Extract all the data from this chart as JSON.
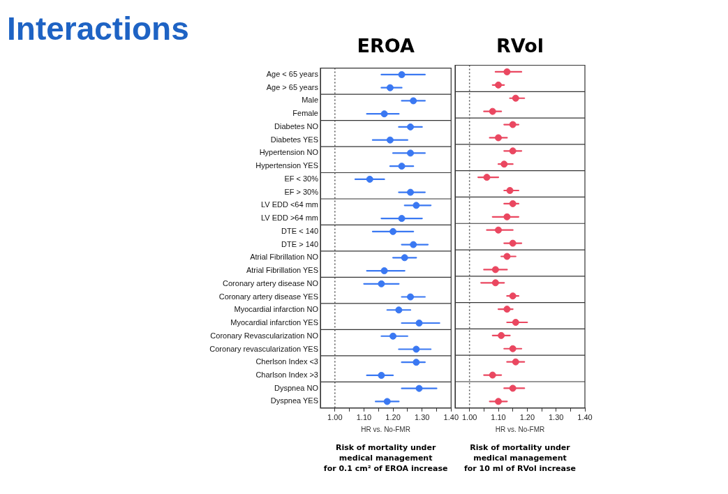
{
  "chart_data": [
    {
      "type": "scatter",
      "title": "EROA",
      "xlabel": "HR vs. No-FMR",
      "orientation": "horizontal",
      "marker": "circle",
      "legend": false,
      "grid": false,
      "annotations": [
        "Interactions",
        "Risk of mortality under\nmedical management\nfor 0.1 cm² of EROA increase"
      ],
      "categories": [
        "Age < 65 years",
        "Age > 65 years",
        "Male",
        "Female",
        "Diabetes NO",
        "Diabetes YES",
        "Hypertension NO",
        "Hypertension YES",
        "EF < 30%",
        "EF > 30%",
        "LV EDD <64 mm",
        "LV EDD >64 mm",
        "DTE < 140",
        "DTE > 140",
        "Atrial Fibrillation NO",
        "Atrial Fibrillation YES",
        "Coronary artery disease NO",
        "Coronary artery disease YES",
        "Myocardial infarction NO",
        "Myocardial infarction YES",
        "Coronary Revascularization NO",
        "Coronary revascularization YES",
        "Cherlson Index <3",
        "Charlson Index >3",
        "Dyspnea NO",
        "Dyspnea YES"
      ],
      "xlim": [
        0.95,
        1.4
      ],
      "xticks": [
        {
          "value": 1,
          "label": "1.00"
        },
        {
          "value": 1.05,
          "label": null
        },
        {
          "value": 1.1,
          "label": "1.10"
        },
        {
          "value": 1.15,
          "label": null
        },
        {
          "value": 1.2,
          "label": "1.20"
        },
        {
          "value": 1.25,
          "label": null
        },
        {
          "value": 1.3,
          "label": "1.30"
        },
        {
          "value": 1.35,
          "label": null
        },
        {
          "value": 1.4,
          "label": "1.40"
        }
      ],
      "ref_lines": [
        {
          "axis": "x",
          "value": 1,
          "line_style": "dotted",
          "color": "#555555"
        }
      ],
      "series": [
        {
          "color": "#3a78f2",
          "values": [
            1.23,
            1.19,
            1.27,
            1.17,
            1.26,
            1.19,
            1.26,
            1.23,
            1.12,
            1.26,
            1.28,
            1.23,
            1.2,
            1.27,
            1.24,
            1.17,
            1.16,
            1.26,
            1.22,
            1.29,
            1.2,
            1.28,
            1.28,
            1.16,
            1.29,
            1.18
          ],
          "errors": [
            [
              1.16,
              1.31
            ],
            [
              1.16,
              1.23
            ],
            [
              1.23,
              1.31
            ],
            [
              1.11,
              1.22
            ],
            [
              1.22,
              1.3
            ],
            [
              1.13,
              1.25
            ],
            [
              1.2,
              1.31
            ],
            [
              1.19,
              1.27
            ],
            [
              1.07,
              1.17
            ],
            [
              1.22,
              1.31
            ],
            [
              1.24,
              1.33
            ],
            [
              1.16,
              1.3
            ],
            [
              1.13,
              1.27
            ],
            [
              1.23,
              1.32
            ],
            [
              1.2,
              1.28
            ],
            [
              1.11,
              1.24
            ],
            [
              1.1,
              1.22
            ],
            [
              1.23,
              1.31
            ],
            [
              1.18,
              1.26
            ],
            [
              1.23,
              1.36
            ],
            [
              1.16,
              1.25
            ],
            [
              1.22,
              1.33
            ],
            [
              1.23,
              1.31
            ],
            [
              1.11,
              1.2
            ],
            [
              1.23,
              1.35
            ],
            [
              1.14,
              1.22
            ]
          ]
        }
      ]
    },
    {
      "type": "scatter",
      "title": "RVol",
      "xlabel": "HR vs. No-FMR",
      "orientation": "horizontal",
      "marker": "circle",
      "legend": false,
      "grid": false,
      "tick_labels": "x",
      "annotations": [
        "Risk of mortality under\nmedical management\nfor 10 ml of RVol increase"
      ],
      "categories": [
        null,
        null,
        null,
        null,
        null,
        null,
        null,
        null,
        null,
        null,
        null,
        null,
        null,
        null,
        null,
        null,
        null,
        null,
        null,
        null,
        null,
        null,
        null,
        null,
        null,
        null
      ],
      "xlim": [
        0.95,
        1.4
      ],
      "xticks": [
        {
          "value": 1,
          "label": "1.00"
        },
        {
          "value": 1.05,
          "label": null
        },
        {
          "value": 1.1,
          "label": "1.10"
        },
        {
          "value": 1.15,
          "label": null
        },
        {
          "value": 1.2,
          "label": "1.20"
        },
        {
          "value": 1.25,
          "label": null
        },
        {
          "value": 1.3,
          "label": "1.30"
        },
        {
          "value": 1.35,
          "label": null
        },
        {
          "value": 1.4,
          "label": "1.40"
        }
      ],
      "ref_lines": [
        {
          "axis": "x",
          "value": 1,
          "line_style": "dotted",
          "color": "#555555"
        }
      ],
      "series": [
        {
          "color": "#ea4760",
          "values": [
            1.13,
            1.1,
            1.16,
            1.08,
            1.15,
            1.1,
            1.15,
            1.12,
            1.06,
            1.14,
            1.15,
            1.13,
            1.1,
            1.15,
            1.13,
            1.09,
            1.09,
            1.15,
            1.13,
            1.16,
            1.11,
            1.15,
            1.16,
            1.08,
            1.15,
            1.1
          ],
          "errors": [
            [
              1.09,
              1.18
            ],
            [
              1.08,
              1.12
            ],
            [
              1.14,
              1.19
            ],
            [
              1.05,
              1.11
            ],
            [
              1.12,
              1.17
            ],
            [
              1.07,
              1.13
            ],
            [
              1.12,
              1.18
            ],
            [
              1.1,
              1.15
            ],
            [
              1.03,
              1.1
            ],
            [
              1.12,
              1.17
            ],
            [
              1.12,
              1.17
            ],
            [
              1.08,
              1.17
            ],
            [
              1.06,
              1.15
            ],
            [
              1.12,
              1.18
            ],
            [
              1.11,
              1.16
            ],
            [
              1.05,
              1.13
            ],
            [
              1.04,
              1.12
            ],
            [
              1.13,
              1.17
            ],
            [
              1.1,
              1.15
            ],
            [
              1.13,
              1.2
            ],
            [
              1.08,
              1.14
            ],
            [
              1.12,
              1.18
            ],
            [
              1.13,
              1.19
            ],
            [
              1.05,
              1.11
            ],
            [
              1.12,
              1.19
            ],
            [
              1.07,
              1.13
            ]
          ]
        }
      ]
    }
  ]
}
